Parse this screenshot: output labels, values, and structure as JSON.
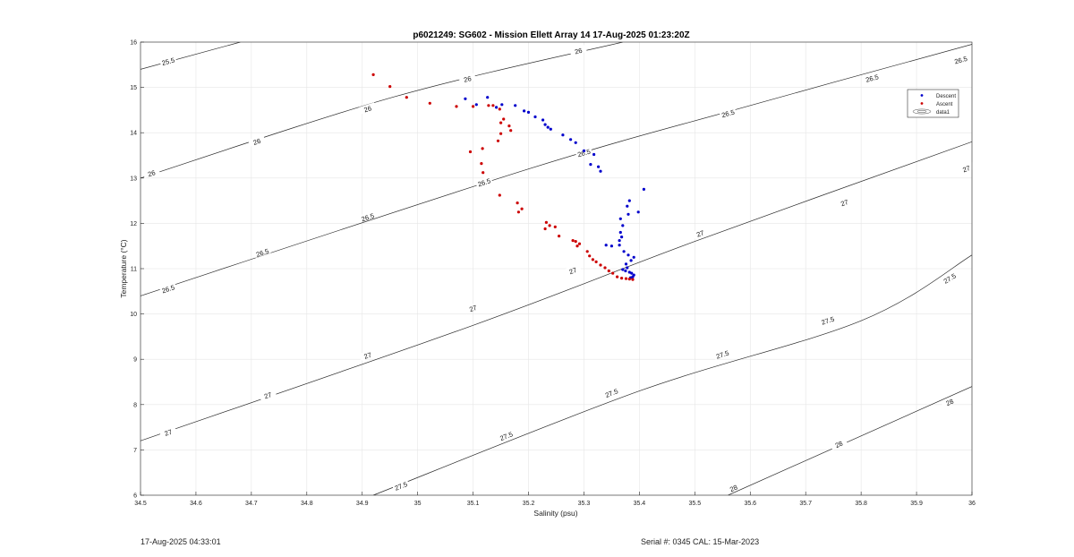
{
  "chart_data": {
    "type": "scatter",
    "title": "p6021249: SG602 - Mission Ellett Array 14 17-Aug-2025 01:23:20Z",
    "xlabel": "Salinity (psu)",
    "ylabel": "Temperature (°C)",
    "xlim": [
      34.5,
      36
    ],
    "ylim": [
      6,
      16
    ],
    "x_ticks": [
      "34.5",
      "34.6",
      "34.7",
      "34.8",
      "34.9",
      "35",
      "35.1",
      "35.2",
      "35.3",
      "35.4",
      "35.5",
      "35.6",
      "35.7",
      "35.8",
      "35.9",
      "36"
    ],
    "y_ticks": [
      "6",
      "7",
      "8",
      "9",
      "10",
      "11",
      "12",
      "13",
      "14",
      "15",
      "16"
    ],
    "grid": true,
    "legend_position": "top-right",
    "legend": [
      "Descent",
      "Ascent",
      "data1"
    ],
    "contours": [
      {
        "level": 25.5,
        "label": "25.5",
        "points": [
          [
            34.5,
            15.4
          ],
          [
            34.68,
            16.0
          ]
        ],
        "label_positions": [
          [
            34.55,
            15.57
          ]
        ]
      },
      {
        "level": 26,
        "label": "26",
        "points": [
          [
            34.5,
            13.0
          ],
          [
            34.96,
            14.8
          ],
          [
            35.37,
            16.0
          ]
        ],
        "label_positions": [
          [
            34.52,
            13.1
          ],
          [
            34.71,
            13.8
          ],
          [
            34.91,
            14.52
          ],
          [
            35.09,
            15.18
          ],
          [
            35.29,
            15.8
          ]
        ]
      },
      {
        "level": 26.5,
        "label": "26.5",
        "points": [
          [
            34.5,
            10.4
          ],
          [
            35.2,
            13.2
          ],
          [
            35.6,
            14.6
          ],
          [
            36.0,
            15.95
          ]
        ],
        "label_positions": [
          [
            34.55,
            10.55
          ],
          [
            34.72,
            11.35
          ],
          [
            34.91,
            12.13
          ],
          [
            35.12,
            12.9
          ],
          [
            35.3,
            13.55
          ],
          [
            35.56,
            14.42
          ],
          [
            35.82,
            15.2
          ],
          [
            35.98,
            15.6
          ]
        ]
      },
      {
        "level": 27,
        "label": "27",
        "points": [
          [
            34.5,
            7.2
          ],
          [
            35.1,
            9.75
          ],
          [
            35.5,
            11.6
          ],
          [
            36.0,
            13.8
          ]
        ],
        "label_positions": [
          [
            34.55,
            7.38
          ],
          [
            34.73,
            8.2
          ],
          [
            34.91,
            9.08
          ],
          [
            35.1,
            10.12
          ],
          [
            35.28,
            10.95
          ],
          [
            35.51,
            11.77
          ],
          [
            35.77,
            12.45
          ],
          [
            35.99,
            13.2
          ]
        ]
      },
      {
        "level": 27.5,
        "label": "27.5",
        "points": [
          [
            34.92,
            6.0
          ],
          [
            35.4,
            8.3
          ],
          [
            35.8,
            9.85
          ],
          [
            36.0,
            11.3
          ]
        ],
        "label_positions": [
          [
            34.97,
            6.2
          ],
          [
            35.16,
            7.3
          ],
          [
            35.35,
            8.25
          ],
          [
            35.55,
            9.1
          ],
          [
            35.74,
            9.85
          ],
          [
            35.96,
            10.78
          ]
        ]
      },
      {
        "level": 28,
        "label": "28",
        "points": [
          [
            35.56,
            6.0
          ],
          [
            36.0,
            8.4
          ]
        ],
        "label_positions": [
          [
            35.57,
            6.15
          ],
          [
            35.76,
            7.12
          ],
          [
            35.96,
            8.05
          ]
        ]
      }
    ],
    "series": [
      {
        "name": "Descent",
        "color": "#0000cc",
        "points": [
          [
            35.086,
            14.75
          ],
          [
            35.106,
            14.62
          ],
          [
            35.126,
            14.78
          ],
          [
            35.142,
            14.56
          ],
          [
            35.152,
            14.62
          ],
          [
            35.176,
            14.6
          ],
          [
            35.192,
            14.48
          ],
          [
            35.2,
            14.45
          ],
          [
            35.212,
            14.35
          ],
          [
            35.226,
            14.28
          ],
          [
            35.23,
            14.18
          ],
          [
            35.235,
            14.12
          ],
          [
            35.24,
            14.08
          ],
          [
            35.262,
            13.95
          ],
          [
            35.276,
            13.85
          ],
          [
            35.285,
            13.78
          ],
          [
            35.3,
            13.6
          ],
          [
            35.312,
            13.3
          ],
          [
            35.318,
            13.52
          ],
          [
            35.326,
            13.25
          ],
          [
            35.33,
            13.15
          ],
          [
            35.408,
            12.75
          ],
          [
            35.382,
            12.5
          ],
          [
            35.378,
            12.38
          ],
          [
            35.398,
            12.25
          ],
          [
            35.38,
            12.2
          ],
          [
            35.366,
            12.1
          ],
          [
            35.37,
            11.95
          ],
          [
            35.366,
            11.8
          ],
          [
            35.368,
            11.7
          ],
          [
            35.364,
            11.62
          ],
          [
            35.364,
            11.52
          ],
          [
            35.35,
            11.5
          ],
          [
            35.34,
            11.52
          ],
          [
            35.372,
            11.38
          ],
          [
            35.38,
            11.3
          ],
          [
            35.39,
            11.25
          ],
          [
            35.385,
            11.18
          ],
          [
            35.376,
            11.1
          ],
          [
            35.378,
            11.02
          ],
          [
            35.37,
            10.98
          ],
          [
            35.375,
            10.95
          ],
          [
            35.382,
            10.92
          ],
          [
            35.386,
            10.9
          ],
          [
            35.39,
            10.86
          ],
          [
            35.388,
            10.82
          ],
          [
            35.384,
            10.8
          ]
        ]
      },
      {
        "name": "Ascent",
        "color": "#cc0000",
        "points": [
          [
            34.92,
            15.28
          ],
          [
            34.95,
            15.02
          ],
          [
            34.98,
            14.78
          ],
          [
            35.022,
            14.65
          ],
          [
            35.07,
            14.58
          ],
          [
            35.1,
            14.58
          ],
          [
            35.128,
            14.6
          ],
          [
            35.136,
            14.6
          ],
          [
            35.148,
            14.52
          ],
          [
            35.155,
            14.3
          ],
          [
            35.15,
            14.22
          ],
          [
            35.165,
            14.15
          ],
          [
            35.168,
            14.05
          ],
          [
            35.15,
            13.98
          ],
          [
            35.145,
            13.82
          ],
          [
            35.117,
            13.65
          ],
          [
            35.095,
            13.58
          ],
          [
            35.115,
            13.32
          ],
          [
            35.118,
            13.12
          ],
          [
            35.148,
            12.62
          ],
          [
            35.18,
            12.45
          ],
          [
            35.188,
            12.32
          ],
          [
            35.182,
            12.25
          ],
          [
            35.232,
            12.02
          ],
          [
            35.238,
            11.95
          ],
          [
            35.248,
            11.92
          ],
          [
            35.23,
            11.88
          ],
          [
            35.255,
            11.72
          ],
          [
            35.28,
            11.62
          ],
          [
            35.285,
            11.6
          ],
          [
            35.292,
            11.55
          ],
          [
            35.288,
            11.5
          ],
          [
            35.306,
            11.38
          ],
          [
            35.31,
            11.28
          ],
          [
            35.316,
            11.2
          ],
          [
            35.322,
            11.15
          ],
          [
            35.33,
            11.08
          ],
          [
            35.338,
            11.02
          ],
          [
            35.345,
            10.95
          ],
          [
            35.352,
            10.9
          ],
          [
            35.36,
            10.82
          ],
          [
            35.368,
            10.79
          ],
          [
            35.376,
            10.78
          ],
          [
            35.382,
            10.77
          ],
          [
            35.388,
            10.76
          ]
        ]
      }
    ]
  },
  "footer": {
    "timestamp": "17-Aug-2025 04:33:01",
    "serial": "Serial #: 0345  CAL: 15-Mar-2023"
  }
}
